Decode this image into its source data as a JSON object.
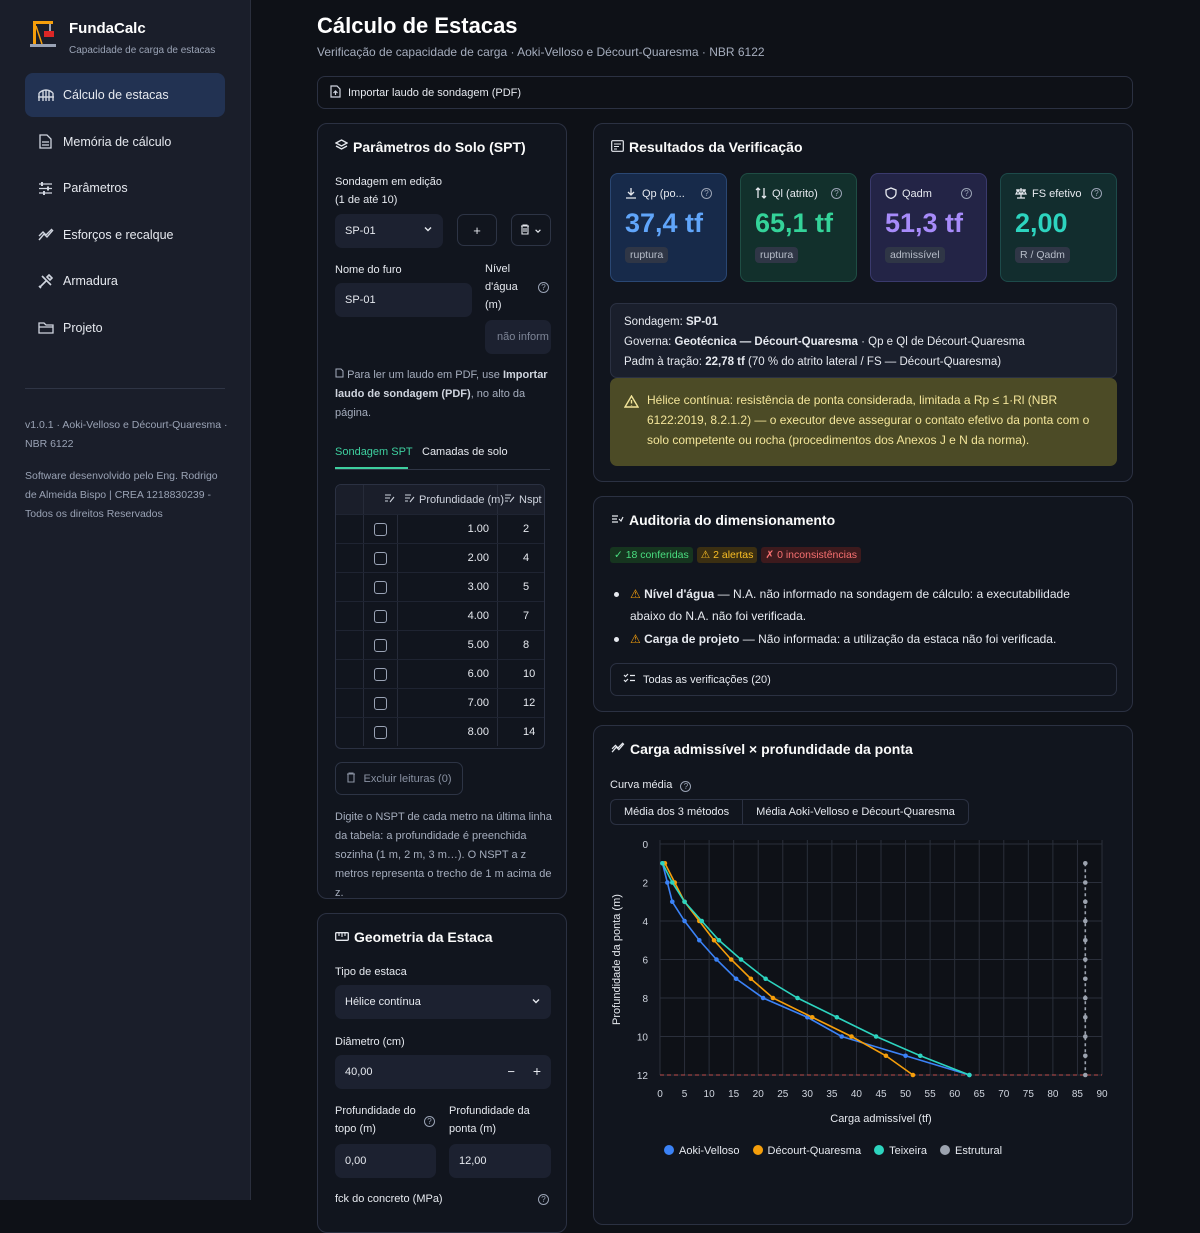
{
  "app": {
    "name": "FundaCalc",
    "subtitle": "Capacidade de carga de estacas"
  },
  "nav": [
    {
      "label": "Cálculo de estacas",
      "icon": "bridge-icon",
      "active": true
    },
    {
      "label": "Memória de cálculo",
      "icon": "document-icon",
      "active": false
    },
    {
      "label": "Parâmetros",
      "icon": "sliders-icon",
      "active": false
    },
    {
      "label": "Esforços e recalque",
      "icon": "trend-icon",
      "active": false
    },
    {
      "label": "Armadura",
      "icon": "tools-icon",
      "active": false
    },
    {
      "label": "Projeto",
      "icon": "folder-icon",
      "active": false
    }
  ],
  "sidebar_footer": {
    "version": "v1.0.1 · Aoki-Velloso e Décourt-Quaresma · NBR 6122",
    "credits": "Software desenvolvido pelo Eng. Rodrigo de Almeida Bispo | CREA 1218830239 - Todos os direitos Reservados"
  },
  "header": {
    "title": "Cálculo de Estacas",
    "subtitle": "Verificação de capacidade de carga · Aoki-Velloso e Décourt-Quaresma · NBR 6122",
    "import_label": "Importar laudo de sondagem (PDF)"
  },
  "soil": {
    "title": "Parâmetros do Solo (SPT)",
    "boring_label_1": "Sondagem em edição",
    "boring_label_2": "(1 de até 10)",
    "boring_value": "SP-01",
    "add_symbol": "+",
    "hole_name_label": "Nome do furo",
    "hole_name_value": "SP-01",
    "water_label_1": "Nível",
    "water_label_2": "d'água",
    "water_label_3": "(m)",
    "water_placeholder": "não inform",
    "pdf_hint_pre": "Para ler um laudo em PDF, use ",
    "pdf_hint_bold": "Importar laudo de sondagem (PDF)",
    "pdf_hint_post": ", no alto da página.",
    "tabs": [
      "Sondagem SPT",
      "Camadas de solo"
    ],
    "table_headers": [
      "Profundidade (m)",
      "Nspt"
    ],
    "rows": [
      {
        "depth": "1.00",
        "nspt": "2"
      },
      {
        "depth": "2.00",
        "nspt": "4"
      },
      {
        "depth": "3.00",
        "nspt": "5"
      },
      {
        "depth": "4.00",
        "nspt": "7"
      },
      {
        "depth": "5.00",
        "nspt": "8"
      },
      {
        "depth": "6.00",
        "nspt": "10"
      },
      {
        "depth": "7.00",
        "nspt": "12"
      },
      {
        "depth": "8.00",
        "nspt": "14"
      }
    ],
    "delete_label": "Excluir leituras (0)",
    "table_hint": "Digite o NSPT de cada metro na última linha da tabela: a profundidade é preenchida sozinha (1 m, 2 m, 3 m…). O NSPT a z metros representa o trecho de 1 m acima de z."
  },
  "geometry": {
    "title": "Geometria da Estaca",
    "type_label": "Tipo de estaca",
    "type_value": "Hélice contínua",
    "diameter_label": "Diâmetro (cm)",
    "diameter_value": "40,00",
    "minus": "−",
    "plus": "+",
    "top_label_1": "Profundidade do",
    "top_label_2": "topo (m)",
    "top_value": "0,00",
    "tip_label_1": "Profundidade da",
    "tip_label_2": "ponta (m)",
    "tip_value": "12,00",
    "fck_label": "fck do concreto (MPa)"
  },
  "results": {
    "title": "Resultados da Verificação",
    "metrics": [
      {
        "label": "Qp (po...",
        "value": "37,4 tf",
        "badge": "ruptura",
        "color": "#60a5fa",
        "bg": "#172a4a",
        "border": "#2a4773",
        "icon": "download-icon"
      },
      {
        "label": "Ql (atrito)",
        "value": "65,1 tf",
        "badge": "ruptura",
        "color": "#34d399",
        "bg": "#12302c",
        "border": "#1f4d44",
        "icon": "updown-icon"
      },
      {
        "label": "Qadm",
        "value": "51,3 tf",
        "badge": "admissível",
        "color": "#a78bfa",
        "bg": "#232446",
        "border": "#3a3a6d",
        "icon": "shield-icon"
      },
      {
        "label": "FS efetivo",
        "value": "2,00",
        "badge": "R / Qadm",
        "color": "#2dd4bf",
        "bg": "#122d2e",
        "border": "#1d4a4a",
        "icon": "scale-icon"
      }
    ],
    "boring_pre": "Sondagem: ",
    "boring_name": "SP-01",
    "governs_pre": "Governa: ",
    "governs_bold": "Geotécnica — Décourt-Quaresma",
    "governs_post": " · Qp e Ql de Décourt-Quaresma",
    "traction_pre": "Padm à tração: ",
    "traction_bold": "22,78 tf",
    "traction_post": " (70 % do atrito lateral / FS — Décourt-Quaresma)",
    "warning": "Hélice contínua: resistência de ponta considerada, limitada a Rp ≤ 1·Rl (NBR 6122:2019, 8.2.1.2) — o executor deve assegurar o contato efetivo da ponta com o solo competente ou rocha (procedimentos dos Anexos J e N da norma)."
  },
  "audit": {
    "title": "Auditoria do dimensionamento",
    "chips": [
      {
        "label": "✓ 18 conferidas",
        "color": "#4ade80",
        "bg": "#16351f"
      },
      {
        "label": "⚠ 2 alertas",
        "color": "#fbbf24",
        "bg": "#3b2f12"
      },
      {
        "label": "✗ 0 inconsistências",
        "color": "#f87171",
        "bg": "#3d1a1d"
      }
    ],
    "items": [
      {
        "bold": "Nível d'água",
        "text": " — N.A. não informado na sondagem de cálculo: a executabilidade abaixo do N.A. não foi verificada."
      },
      {
        "bold": "Carga de projeto",
        "text": " — Não informada: a utilização da estaca não foi verificada."
      }
    ],
    "expander_label": "Todas as verificações (20)"
  },
  "chart_section": {
    "title": "Carga admissível × profundidade da ponta",
    "curve_label": "Curva média",
    "options": [
      "Média dos 3 métodos",
      "Média Aoki-Velloso e Décourt-Quaresma"
    ]
  },
  "chart_data": {
    "type": "line",
    "xlabel": "Carga admissível (tf)",
    "ylabel": "Profundidade da ponta (m)",
    "xlim": [
      0,
      90
    ],
    "ylim": [
      0,
      12
    ],
    "y_inverted": true,
    "xticks": [
      0,
      5,
      10,
      15,
      20,
      25,
      30,
      35,
      40,
      45,
      50,
      55,
      60,
      65,
      70,
      75,
      80,
      85,
      90
    ],
    "yticks": [
      0,
      2,
      4,
      6,
      8,
      10,
      12
    ],
    "tip_depth_line": 12,
    "series": [
      {
        "name": "Aoki-Velloso",
        "color": "#3b82f6",
        "points": [
          [
            0.5,
            1
          ],
          [
            1.5,
            2
          ],
          [
            2.5,
            3
          ],
          [
            5,
            4
          ],
          [
            8,
            5
          ],
          [
            11.5,
            6
          ],
          [
            15.5,
            7
          ],
          [
            21,
            8
          ],
          [
            30,
            9
          ],
          [
            37,
            10
          ],
          [
            50,
            11
          ],
          [
            63,
            12
          ]
        ]
      },
      {
        "name": "Décourt-Quaresma",
        "color": "#f59e0b",
        "points": [
          [
            1,
            1
          ],
          [
            3,
            2
          ],
          [
            5,
            3
          ],
          [
            8,
            4
          ],
          [
            11,
            5
          ],
          [
            14.5,
            6
          ],
          [
            18.5,
            7
          ],
          [
            23,
            8
          ],
          [
            31,
            9
          ],
          [
            39,
            10
          ],
          [
            46,
            11
          ],
          [
            51.5,
            12
          ]
        ]
      },
      {
        "name": "Teixeira",
        "color": "#2dd4bf",
        "points": [
          [
            0.5,
            1
          ],
          [
            2.5,
            2
          ],
          [
            5,
            3
          ],
          [
            8.5,
            4
          ],
          [
            12,
            5
          ],
          [
            16.5,
            6
          ],
          [
            21.5,
            7
          ],
          [
            28,
            8
          ],
          [
            36,
            9
          ],
          [
            44,
            10
          ],
          [
            53,
            11
          ],
          [
            63,
            12
          ]
        ]
      },
      {
        "name": "Estrutural",
        "color": "#9ca3af",
        "points": [
          [
            86.6,
            1
          ],
          [
            86.6,
            2
          ],
          [
            86.6,
            3
          ],
          [
            86.6,
            4
          ],
          [
            86.6,
            5
          ],
          [
            86.6,
            6
          ],
          [
            86.6,
            7
          ],
          [
            86.6,
            8
          ],
          [
            86.6,
            9
          ],
          [
            86.6,
            10
          ],
          [
            86.6,
            11
          ],
          [
            86.6,
            12
          ]
        ]
      }
    ]
  }
}
